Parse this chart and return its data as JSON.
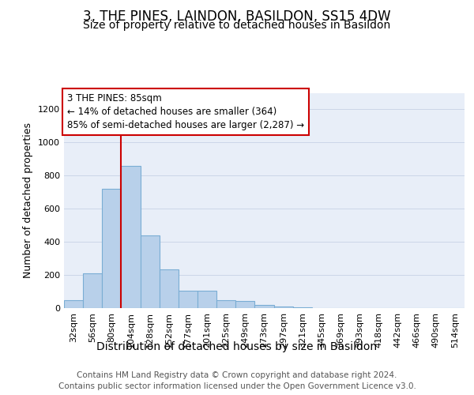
{
  "title": "3, THE PINES, LAINDON, BASILDON, SS15 4DW",
  "subtitle": "Size of property relative to detached houses in Basildon",
  "xlabel": "Distribution of detached houses by size in Basildon",
  "ylabel": "Number of detached properties",
  "footer_line1": "Contains HM Land Registry data © Crown copyright and database right 2024.",
  "footer_line2": "Contains public sector information licensed under the Open Government Licence v3.0.",
  "bin_labels": [
    "32sqm",
    "56sqm",
    "80sqm",
    "104sqm",
    "128sqm",
    "152sqm",
    "177sqm",
    "201sqm",
    "225sqm",
    "249sqm",
    "273sqm",
    "297sqm",
    "321sqm",
    "345sqm",
    "369sqm",
    "393sqm",
    "418sqm",
    "442sqm",
    "466sqm",
    "490sqm",
    "514sqm"
  ],
  "bar_values": [
    50,
    210,
    720,
    860,
    440,
    235,
    105,
    105,
    50,
    45,
    20,
    10,
    5,
    0,
    0,
    0,
    0,
    0,
    0,
    0,
    0
  ],
  "bar_color": "#b8d0ea",
  "bar_edge_color": "#7aadd4",
  "annotation_line1": "3 THE PINES: 85sqm",
  "annotation_line2": "← 14% of detached houses are smaller (364)",
  "annotation_line3": "85% of semi-detached houses are larger (2,287) →",
  "annotation_box_color": "#ffffff",
  "annotation_box_edge_color": "#cc0000",
  "vline_color": "#cc0000",
  "vline_x_index": 2,
  "ylim": [
    0,
    1300
  ],
  "yticks": [
    0,
    200,
    400,
    600,
    800,
    1000,
    1200
  ],
  "grid_color": "#ccd6e8",
  "bg_color": "#e8eef8",
  "title_fontsize": 12,
  "subtitle_fontsize": 10,
  "xlabel_fontsize": 10,
  "ylabel_fontsize": 9,
  "tick_fontsize": 8,
  "annotation_fontsize": 8.5,
  "footer_fontsize": 7.5
}
